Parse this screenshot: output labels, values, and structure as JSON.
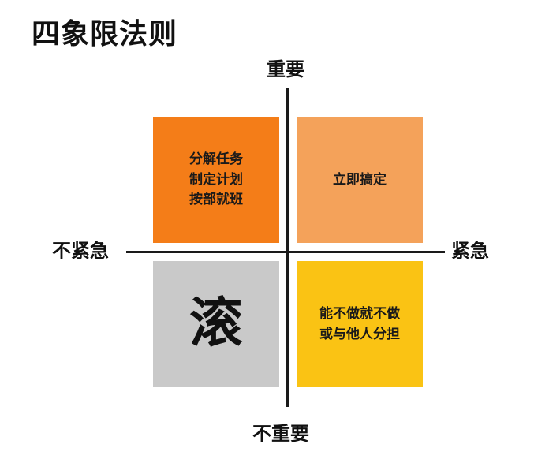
{
  "title": "四象限法则",
  "axes": {
    "top": "重要",
    "bottom": "不重要",
    "left": "不紧急",
    "right": "紧急"
  },
  "quadrants": {
    "top_left": {
      "lines": [
        "分解任务",
        "制定计划",
        "按部就班"
      ],
      "color": "#f47d18"
    },
    "top_right": {
      "lines": [
        "立即搞定"
      ],
      "color": "#f4a25a"
    },
    "bottom_left": {
      "big": "滚",
      "color": "#c9c9c9"
    },
    "bottom_right": {
      "lines": [
        "能不做就不做",
        "或与他人分担"
      ],
      "color": "#fac314"
    }
  }
}
